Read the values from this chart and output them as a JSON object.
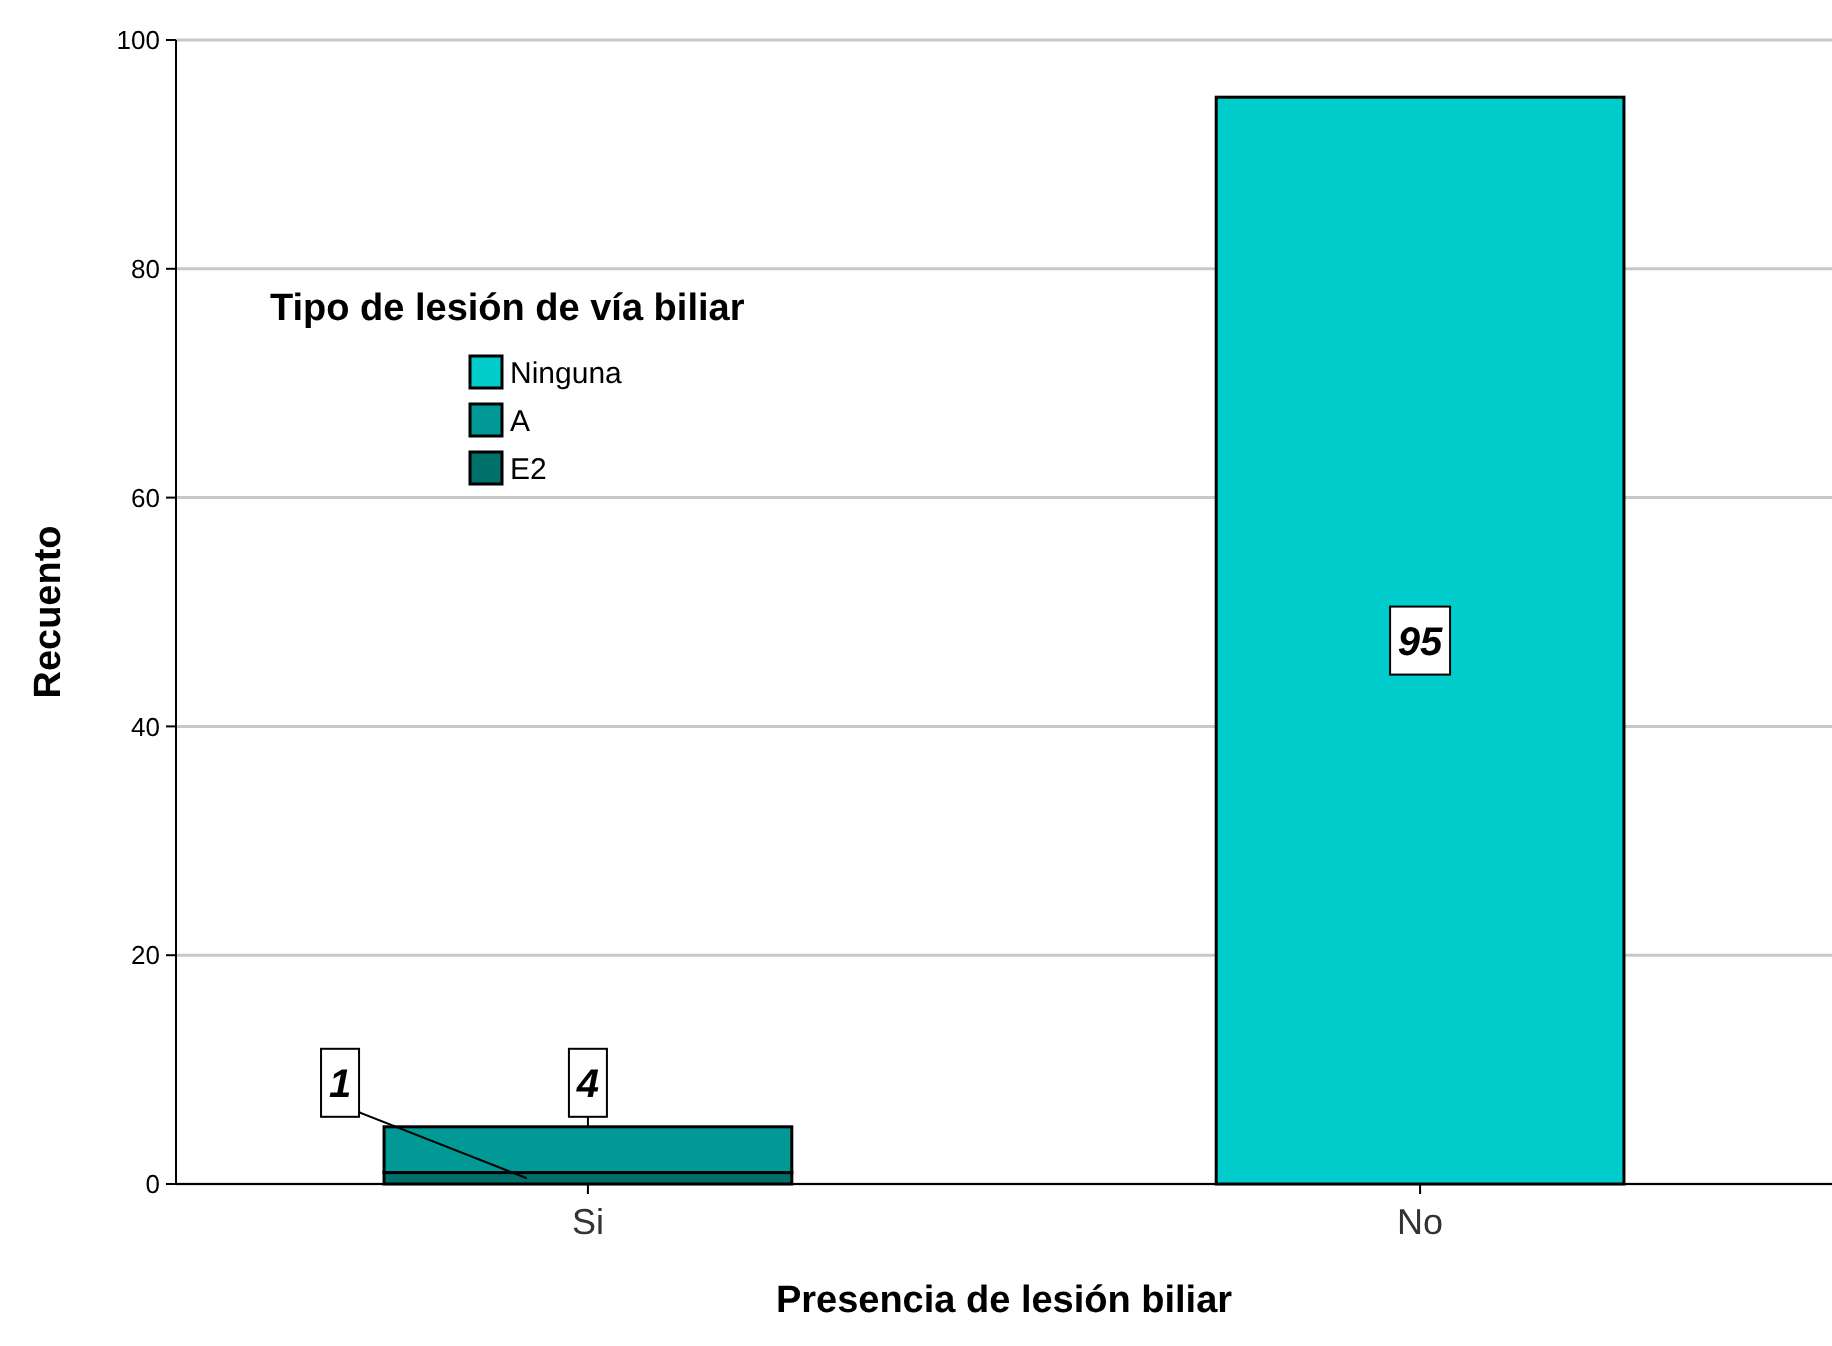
{
  "chart_data": {
    "type": "bar",
    "stacked": true,
    "xlabel": "Presencia de lesión biliar",
    "ylabel": "Recuento",
    "legend_title": "Tipo de lesión de vía biliar",
    "legend": "top left",
    "grid": "y",
    "categories": [
      "Si",
      "No"
    ],
    "series": [
      {
        "name": "E2",
        "color": "#00706b",
        "values": [
          1,
          null
        ],
        "value_labels": [
          "1",
          null
        ]
      },
      {
        "name": "A",
        "color": "#009996",
        "values": [
          4,
          null
        ],
        "value_labels": [
          "4",
          null
        ]
      },
      {
        "name": "Ninguna",
        "color": "#00cccc",
        "values": [
          null,
          95
        ],
        "value_labels": [
          null,
          "95"
        ]
      }
    ],
    "ylim": [
      0,
      100
    ],
    "yticks": [
      0,
      20,
      40,
      60,
      80,
      100
    ]
  }
}
